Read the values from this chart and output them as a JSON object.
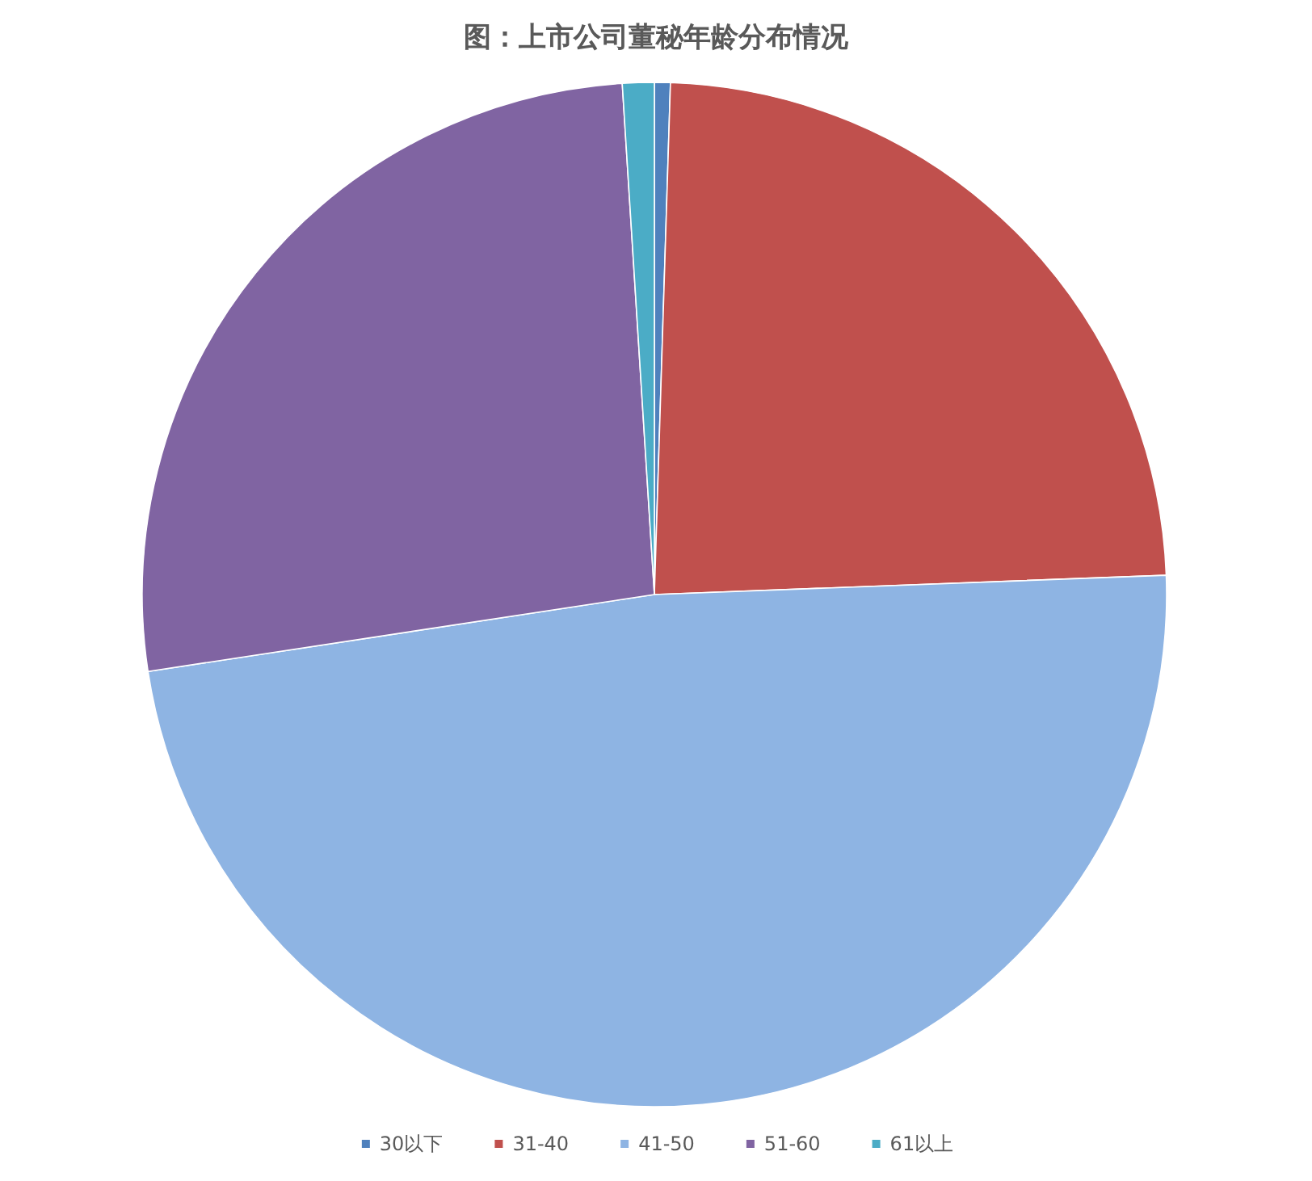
{
  "chart_data": {
    "type": "pie",
    "title": "图：上市公司董秘年龄分布情况",
    "categories": [
      "30以下",
      "31-40",
      "41-50",
      "51-60",
      "61以上"
    ],
    "values": [
      0.5,
      23.9,
      48.2,
      26.4,
      1.0
    ],
    "colors": [
      "#4f81bd",
      "#c0504d",
      "#8eb4e3",
      "#8064a2",
      "#4bacc6"
    ],
    "legend": "bottom"
  }
}
